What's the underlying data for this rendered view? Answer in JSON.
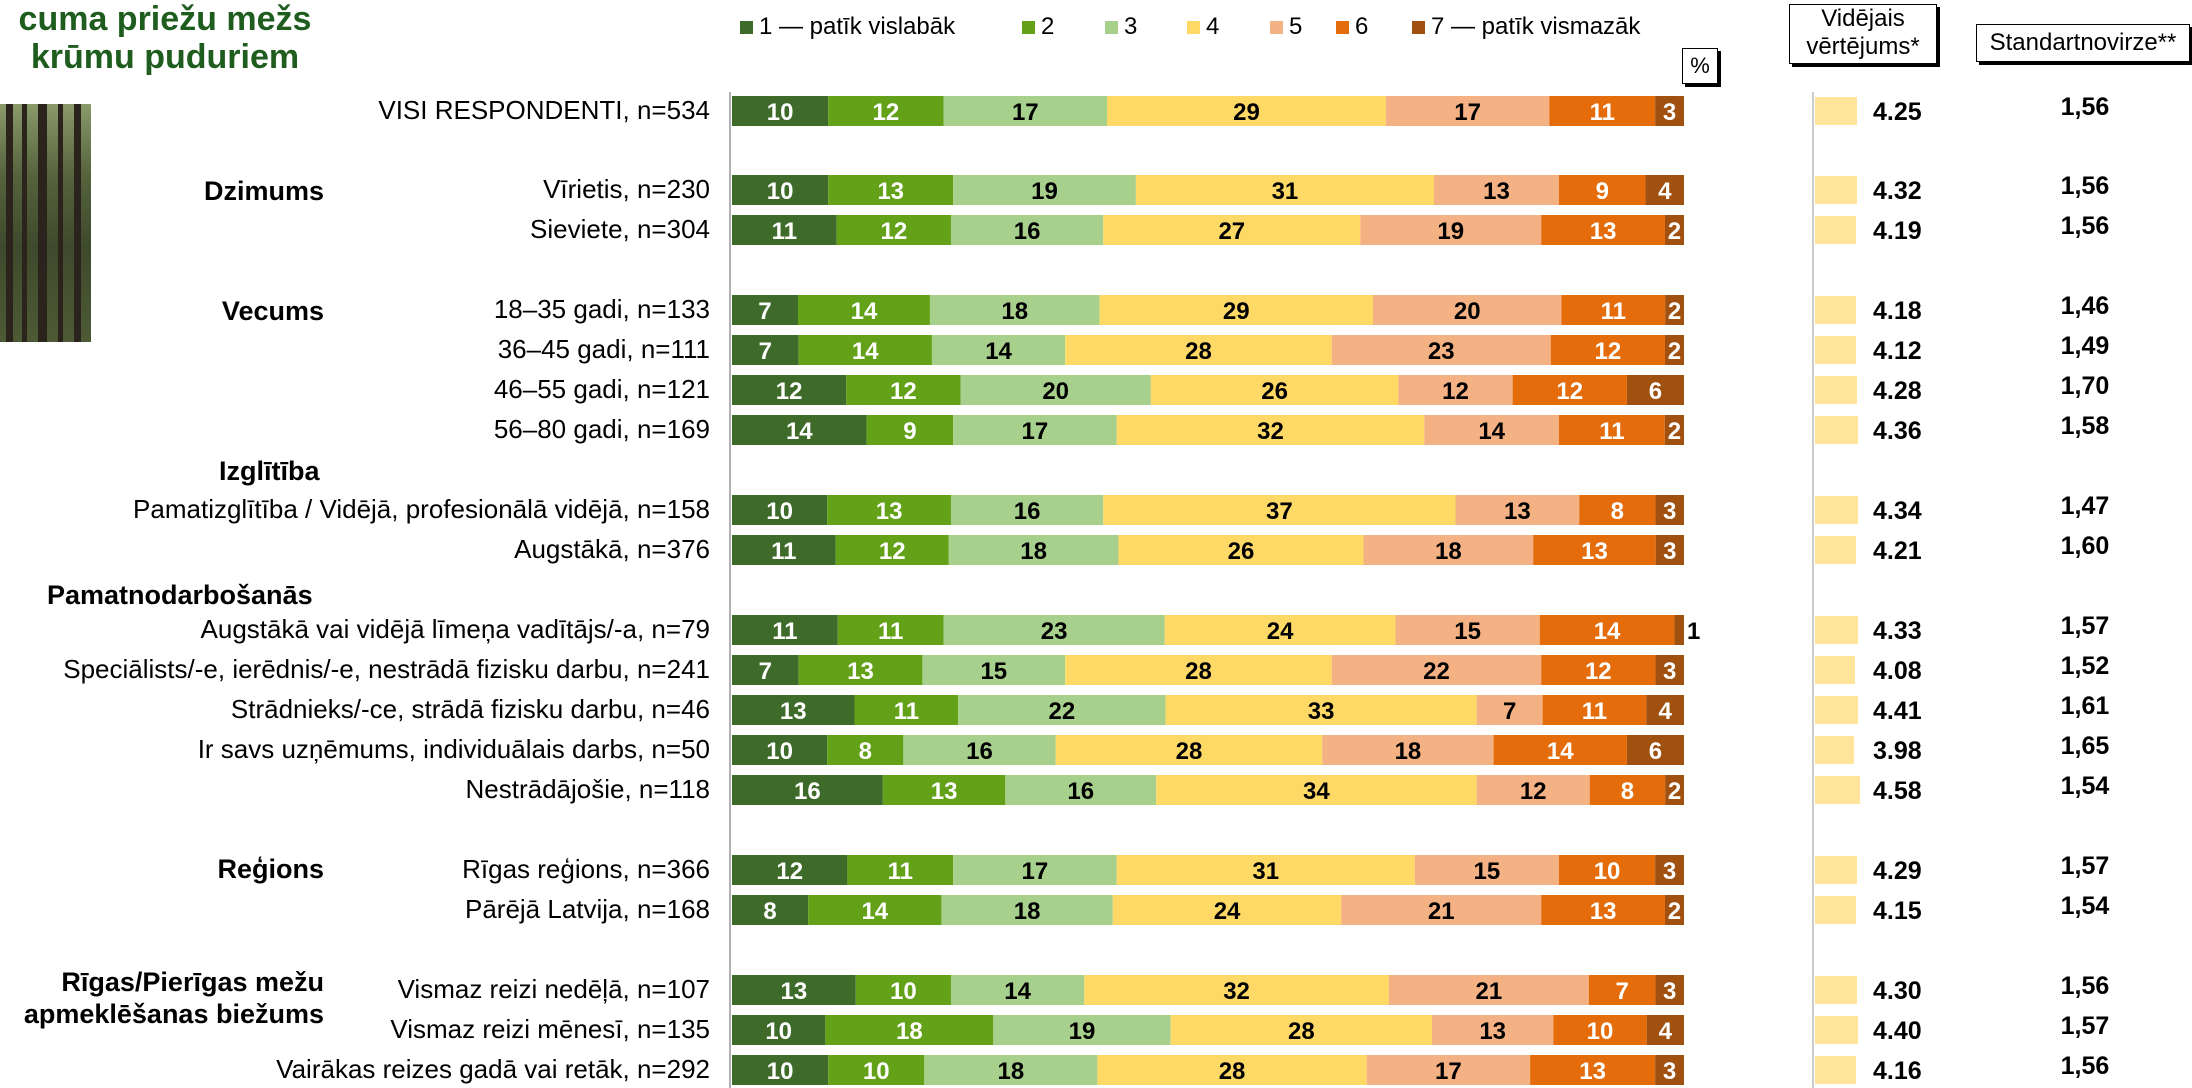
{
  "title": "cuma priežu mežs krūmu puduriem",
  "chart_data": {
    "type": "bar",
    "stacked": true,
    "orientation": "horizontal",
    "percent_label": "%",
    "legend": [
      {
        "label": "1 — patīk vislabāk",
        "color": "#3f6b2a"
      },
      {
        "label": "2",
        "color": "#63a118"
      },
      {
        "label": "3",
        "color": "#a8d08d"
      },
      {
        "label": "4",
        "color": "#ffd966"
      },
      {
        "label": "5",
        "color": "#f4b183"
      },
      {
        "label": "6",
        "color": "#e46c0a"
      },
      {
        "label": "7 — patīk vismazāk",
        "color": "#a05110"
      }
    ],
    "mean_header": "Vidējais vērtējums*",
    "sd_header": "Standartnovirze**",
    "groups": [
      {
        "name": "",
        "rows": [
          {
            "label": "VISI RESPONDENTI, n=534",
            "values": [
              10,
              12,
              17,
              29,
              17,
              11,
              3
            ],
            "mean": "4.25",
            "sd": "1,56"
          }
        ]
      },
      {
        "name": "Dzimums",
        "rows": [
          {
            "label": "Vīrietis, n=230",
            "values": [
              10,
              13,
              19,
              31,
              13,
              9,
              4
            ],
            "mean": "4.32",
            "sd": "1,56"
          },
          {
            "label": "Sieviete, n=304",
            "values": [
              11,
              12,
              16,
              27,
              19,
              13,
              2
            ],
            "mean": "4.19",
            "sd": "1,56"
          }
        ]
      },
      {
        "name": "Vecums",
        "rows": [
          {
            "label": "18–35 gadi, n=133",
            "values": [
              7,
              14,
              18,
              29,
              20,
              11,
              2
            ],
            "mean": "4.18",
            "sd": "1,46"
          },
          {
            "label": "36–45 gadi, n=111",
            "values": [
              7,
              14,
              14,
              28,
              23,
              12,
              2
            ],
            "mean": "4.12",
            "sd": "1,49"
          },
          {
            "label": "46–55 gadi, n=121",
            "values": [
              12,
              12,
              20,
              26,
              12,
              12,
              6
            ],
            "mean": "4.28",
            "sd": "1,70"
          },
          {
            "label": "56–80 gadi, n=169",
            "values": [
              14,
              9,
              17,
              32,
              14,
              11,
              2
            ],
            "mean": "4.36",
            "sd": "1,58"
          }
        ]
      },
      {
        "name": "Izglītība",
        "rows": [
          {
            "label": "Pamatizglītība / Vidējā, profesionālā vidējā, n=158",
            "values": [
              10,
              13,
              16,
              37,
              13,
              8,
              3
            ],
            "mean": "4.34",
            "sd": "1,47"
          },
          {
            "label": "Augstākā, n=376",
            "values": [
              11,
              12,
              18,
              26,
              18,
              13,
              3
            ],
            "mean": "4.21",
            "sd": "1,60"
          }
        ]
      },
      {
        "name": "Pamatnodarbošanās",
        "rows": [
          {
            "label": "Augstākā vai vidējā līmeņa vadītājs/-a, n=79",
            "values": [
              11,
              11,
              23,
              24,
              15,
              14,
              1
            ],
            "mean": "4.33",
            "sd": "1,57"
          },
          {
            "label": "Speciālists/-e, ierēdnis/-e, nestrādā fizisku darbu, n=241",
            "values": [
              7,
              13,
              15,
              28,
              22,
              12,
              3
            ],
            "mean": "4.08",
            "sd": "1,52"
          },
          {
            "label": "Strādnieks/-ce, strādā fizisku darbu, n=46",
            "values": [
              13,
              11,
              22,
              33,
              7,
              11,
              4
            ],
            "mean": "4.41",
            "sd": "1,61"
          },
          {
            "label": "Ir savs uzņēmums, individuālais darbs, n=50",
            "values": [
              10,
              8,
              16,
              28,
              18,
              14,
              6
            ],
            "mean": "3.98",
            "sd": "1,65"
          },
          {
            "label": "Nestrādājošie, n=118",
            "values": [
              16,
              13,
              16,
              34,
              12,
              8,
              2
            ],
            "mean": "4.58",
            "sd": "1,54"
          }
        ]
      },
      {
        "name": "Reģions",
        "rows": [
          {
            "label": "Rīgas reģions, n=366",
            "values": [
              12,
              11,
              17,
              31,
              15,
              10,
              3
            ],
            "mean": "4.29",
            "sd": "1,57"
          },
          {
            "label": "Pārējā Latvija, n=168",
            "values": [
              8,
              14,
              18,
              24,
              21,
              13,
              2
            ],
            "mean": "4.15",
            "sd": "1,54"
          }
        ]
      },
      {
        "name": "Rīgas/Pierīgas mežu apmeklēšanas biežums",
        "rows": [
          {
            "label": "Vismaz reizi nedēļā, n=107",
            "values": [
              13,
              10,
              14,
              32,
              21,
              7,
              3
            ],
            "mean": "4.30",
            "sd": "1,56"
          },
          {
            "label": "Vismaz reizi mēnesī, n=135",
            "values": [
              10,
              18,
              19,
              28,
              13,
              10,
              4
            ],
            "mean": "4.40",
            "sd": "1,57"
          },
          {
            "label": "Vairākas reizes gadā vai retāk, n=292",
            "values": [
              10,
              10,
              18,
              28,
              17,
              13,
              3
            ],
            "mean": "4.16",
            "sd": "1,56"
          }
        ]
      }
    ]
  }
}
